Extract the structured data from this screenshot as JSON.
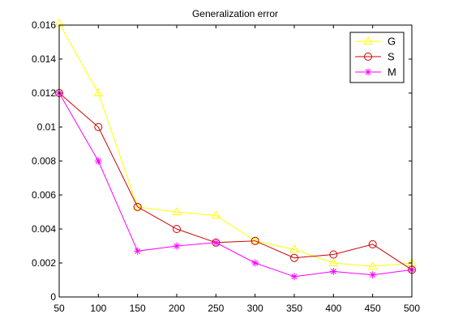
{
  "chart_data": {
    "type": "line",
    "title": "Generalization error",
    "xlabel": "",
    "ylabel": "",
    "x": [
      50,
      100,
      150,
      200,
      250,
      300,
      350,
      400,
      450,
      500
    ],
    "xlim": [
      50,
      500
    ],
    "ylim": [
      0,
      0.016
    ],
    "xticks": [
      50,
      100,
      150,
      200,
      250,
      300,
      350,
      400,
      450,
      500
    ],
    "yticks": [
      0,
      0.002,
      0.004,
      0.006,
      0.008,
      0.01,
      0.012,
      0.014,
      0.016
    ],
    "ytick_labels": [
      "0",
      "0.002",
      "0.004",
      "0.006",
      "0.008",
      "0.01",
      "0.012",
      "0.014",
      "0.016"
    ],
    "grid": false,
    "legend_position": "top-right",
    "series": [
      {
        "name": "G",
        "color": "#ffff00",
        "marker": "triangle",
        "values": [
          0.0161,
          0.012,
          0.0053,
          0.005,
          0.0048,
          0.0033,
          0.0028,
          0.002,
          0.0018,
          0.002
        ]
      },
      {
        "name": "S",
        "color": "#cc0000",
        "marker": "circle",
        "values": [
          0.012,
          0.01,
          0.0053,
          0.004,
          0.0032,
          0.0033,
          0.0023,
          0.0025,
          0.0031,
          0.0016
        ]
      },
      {
        "name": "M",
        "color": "#ff00ff",
        "marker": "star",
        "values": [
          0.012,
          0.008,
          0.0027,
          0.003,
          0.0032,
          0.002,
          0.0012,
          0.0015,
          0.0013,
          0.0016
        ]
      }
    ]
  }
}
